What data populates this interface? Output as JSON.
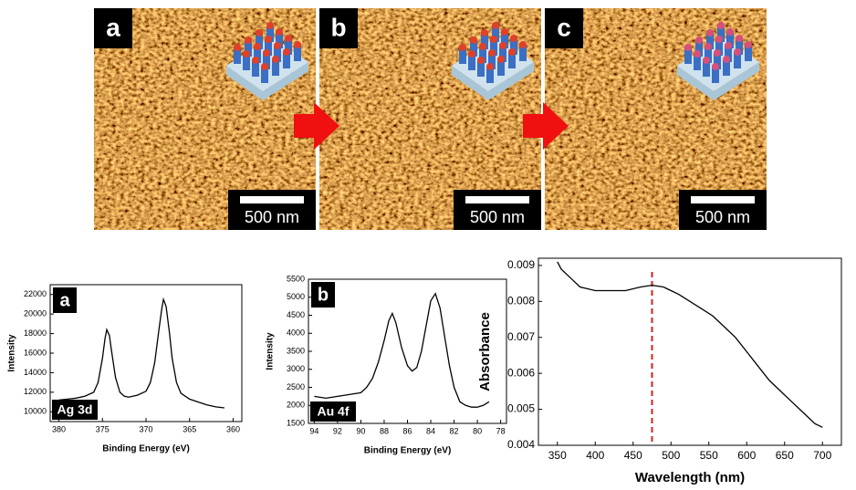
{
  "images": [
    {
      "label": "a",
      "scale_bar": "500 nm"
    },
    {
      "label": "b",
      "scale_bar": "500 nm"
    },
    {
      "label": "c",
      "scale_bar": "500 nm"
    }
  ],
  "chart_data": [
    {
      "type": "line",
      "panel_label": "a",
      "annotation": "Ag 3d",
      "x_label": "Binding Energy (eV)",
      "y_label": "Intensity",
      "x": [
        380,
        379,
        378,
        377,
        376,
        375.5,
        375,
        374.7,
        374.5,
        374.2,
        374,
        373.5,
        373,
        372.5,
        372,
        371,
        370,
        369.5,
        369,
        368.5,
        368.2,
        368,
        367.7,
        367.3,
        367,
        366.5,
        366,
        365,
        364,
        363,
        362,
        361
      ],
      "values": [
        11200,
        11300,
        11400,
        11600,
        12000,
        13000,
        15500,
        17500,
        18400,
        17800,
        16500,
        13500,
        12000,
        11600,
        11500,
        11700,
        12100,
        13000,
        15000,
        18500,
        20500,
        21500,
        20800,
        18000,
        15500,
        13000,
        11900,
        11300,
        11000,
        10700,
        10500,
        10400
      ],
      "color": "#000000",
      "xlim": [
        381,
        359
      ],
      "xticks": [
        380,
        375,
        370,
        365,
        360
      ],
      "ylim": [
        9000,
        23000
      ],
      "yticks": [
        10000,
        12000,
        14000,
        16000,
        18000,
        20000,
        22000
      ]
    },
    {
      "type": "line",
      "panel_label": "b",
      "annotation": "Au 4f",
      "x_label": "Binding Energy (eV)",
      "y_label": "Intensity",
      "x": [
        94,
        93,
        92,
        91,
        90,
        89.5,
        89,
        88.5,
        88,
        87.6,
        87.3,
        87,
        86.5,
        86,
        85.6,
        85.2,
        84.8,
        84.4,
        84,
        83.6,
        83.2,
        82.8,
        82.4,
        82,
        81.5,
        81,
        80.5,
        80,
        79.5,
        79
      ],
      "values": [
        2250,
        2200,
        2250,
        2300,
        2350,
        2500,
        2750,
        3200,
        3800,
        4350,
        4550,
        4300,
        3600,
        3100,
        2950,
        3050,
        3500,
        4200,
        4900,
        5100,
        4700,
        3900,
        3100,
        2500,
        2100,
        2000,
        1950,
        1950,
        2000,
        2100
      ],
      "color": "#000000",
      "xlim": [
        94.5,
        77.5
      ],
      "xticks": [
        94,
        92,
        90,
        88,
        86,
        84,
        82,
        80,
        78
      ],
      "ylim": [
        1500,
        5500
      ],
      "yticks": [
        1500,
        2000,
        2500,
        3000,
        3500,
        4000,
        4500,
        5000,
        5500
      ]
    },
    {
      "type": "line",
      "x_label": "Wavelength (nm)",
      "y_label": "Absorbance",
      "x": [
        350,
        355,
        360,
        370,
        380,
        390,
        400,
        420,
        440,
        460,
        475,
        490,
        500,
        510,
        525,
        540,
        555,
        570,
        585,
        600,
        615,
        630,
        645,
        660,
        675,
        690,
        700
      ],
      "values": [
        0.0091,
        0.0089,
        0.0088,
        0.0086,
        0.0084,
        0.00835,
        0.0083,
        0.0083,
        0.0083,
        0.0084,
        0.00845,
        0.0084,
        0.0083,
        0.0082,
        0.008,
        0.0078,
        0.0076,
        0.0073,
        0.007,
        0.0066,
        0.0062,
        0.0058,
        0.0055,
        0.0052,
        0.0049,
        0.0046,
        0.0045
      ],
      "color": "#000000",
      "marker_x": 475,
      "marker_color": "#d02020",
      "xlim": [
        325,
        725
      ],
      "xticks": [
        350,
        400,
        450,
        500,
        550,
        600,
        650,
        700
      ],
      "ylim": [
        0.004,
        0.0092
      ],
      "yticks": [
        0.004,
        0.005,
        0.006,
        0.007,
        0.008,
        0.009
      ]
    }
  ]
}
